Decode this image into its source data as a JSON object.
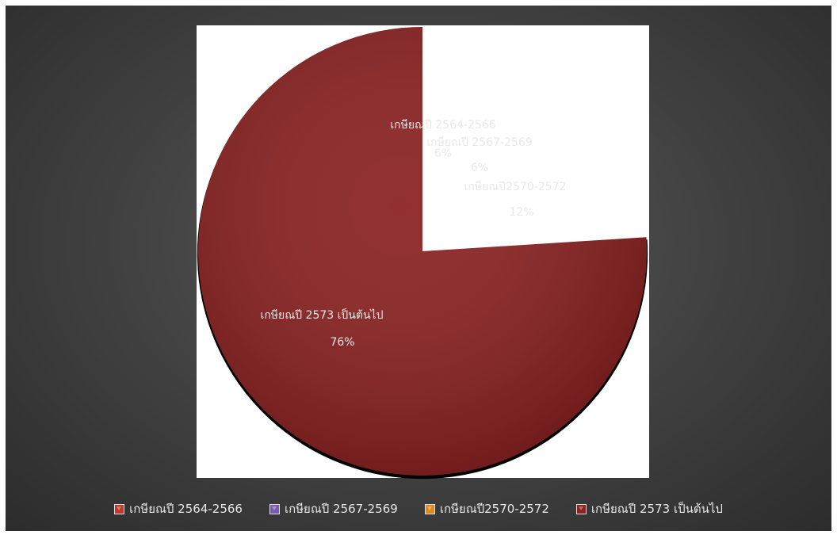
{
  "chart_data": {
    "type": "pie",
    "title": "",
    "categories": [
      "เกษียณปี 2564-2566",
      "เกษียณปี 2567-2569",
      "เกษียณปี2570-2572",
      "เกษียณปี 2573 เป็นต้นไป"
    ],
    "values": [
      6,
      6,
      12,
      76
    ],
    "value_labels": [
      "6%",
      "6%",
      "12%",
      "76%"
    ],
    "colors": [
      "#c0392b",
      "#7b5bb0",
      "#e08a1e",
      "#8b2323"
    ],
    "legend": "bottom"
  }
}
